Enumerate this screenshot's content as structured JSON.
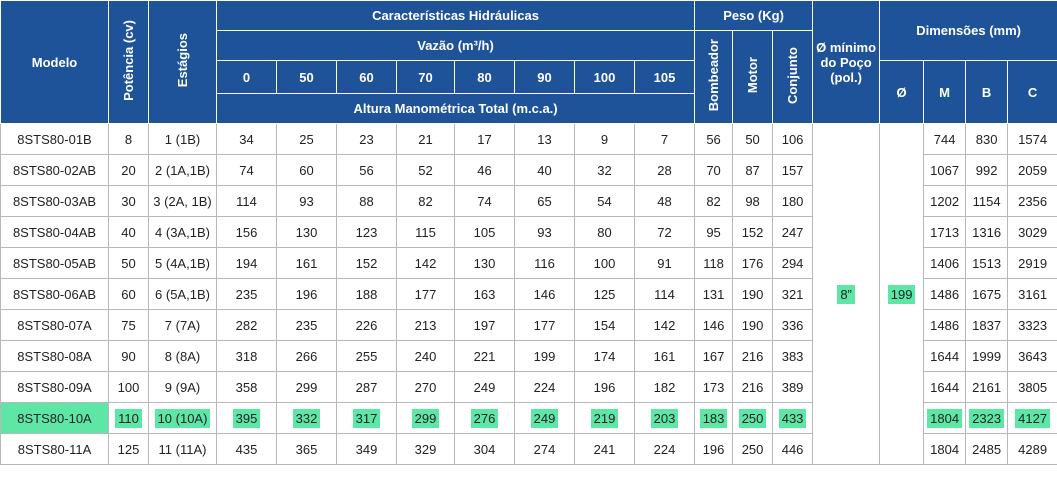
{
  "headers": {
    "modelo": "Modelo",
    "potencia": "Potência (cv)",
    "estagios": "Estágios",
    "caracteristicas": "Características Hidráulicas",
    "vazao": "Vazão (m³/h)",
    "flows": [
      "0",
      "50",
      "60",
      "70",
      "80",
      "90",
      "100",
      "105"
    ],
    "altura": "Altura Manométrica Total (m.c.a.)",
    "peso": "Peso (Kg)",
    "bombeador": "Bombeador",
    "motor": "Motor",
    "conjunto": "Conjunto",
    "poco": "Ø mínimo do Poço (pol.)",
    "dimensoes": "Dimensões (mm)",
    "diam": "Ø",
    "m": "M",
    "b": "B",
    "c": "C"
  },
  "rows": [
    {
      "modelo": "8STS80-01B",
      "potencia": "8",
      "estagios": "1 (1B)",
      "heads": [
        "34",
        "25",
        "23",
        "21",
        "17",
        "13",
        "9",
        "7"
      ],
      "bombeador": "56",
      "motor": "50",
      "conjunto": "106",
      "m": "744",
      "b": "830",
      "c": "1574"
    },
    {
      "modelo": "8STS80-02AB",
      "potencia": "20",
      "estagios": "2 (1A,1B)",
      "heads": [
        "74",
        "60",
        "56",
        "52",
        "46",
        "40",
        "32",
        "28"
      ],
      "bombeador": "70",
      "motor": "87",
      "conjunto": "157",
      "m": "1067",
      "b": "992",
      "c": "2059"
    },
    {
      "modelo": "8STS80-03AB",
      "potencia": "30",
      "estagios": "3 (2A, 1B)",
      "heads": [
        "114",
        "93",
        "88",
        "82",
        "74",
        "65",
        "54",
        "48"
      ],
      "bombeador": "82",
      "motor": "98",
      "conjunto": "180",
      "m": "1202",
      "b": "1154",
      "c": "2356"
    },
    {
      "modelo": "8STS80-04AB",
      "potencia": "40",
      "estagios": "4 (3A,1B)",
      "heads": [
        "156",
        "130",
        "123",
        "115",
        "105",
        "93",
        "80",
        "72"
      ],
      "bombeador": "95",
      "motor": "152",
      "conjunto": "247",
      "m": "1713",
      "b": "1316",
      "c": "3029"
    },
    {
      "modelo": "8STS80-05AB",
      "potencia": "50",
      "estagios": "5 (4A,1B)",
      "heads": [
        "194",
        "161",
        "152",
        "142",
        "130",
        "116",
        "100",
        "91"
      ],
      "bombeador": "118",
      "motor": "176",
      "conjunto": "294",
      "m": "1406",
      "b": "1513",
      "c": "2919"
    },
    {
      "modelo": "8STS80-06AB",
      "potencia": "60",
      "estagios": "6 (5A,1B)",
      "heads": [
        "235",
        "196",
        "188",
        "177",
        "163",
        "146",
        "125",
        "114"
      ],
      "bombeador": "131",
      "motor": "190",
      "conjunto": "321",
      "m": "1486",
      "b": "1675",
      "c": "3161"
    },
    {
      "modelo": "8STS80-07A",
      "potencia": "75",
      "estagios": "7 (7A)",
      "heads": [
        "282",
        "235",
        "226",
        "213",
        "197",
        "177",
        "154",
        "142"
      ],
      "bombeador": "146",
      "motor": "190",
      "conjunto": "336",
      "m": "1486",
      "b": "1837",
      "c": "3323"
    },
    {
      "modelo": "8STS80-08A",
      "potencia": "90",
      "estagios": "8 (8A)",
      "heads": [
        "318",
        "266",
        "255",
        "240",
        "221",
        "199",
        "174",
        "161"
      ],
      "bombeador": "167",
      "motor": "216",
      "conjunto": "383",
      "m": "1644",
      "b": "1999",
      "c": "3643"
    },
    {
      "modelo": "8STS80-09A",
      "potencia": "100",
      "estagios": "9 (9A)",
      "heads": [
        "358",
        "299",
        "287",
        "270",
        "249",
        "224",
        "196",
        "182"
      ],
      "bombeador": "173",
      "motor": "216",
      "conjunto": "389",
      "m": "1644",
      "b": "2161",
      "c": "3805"
    },
    {
      "modelo": "8STS80-10A",
      "potencia": "110",
      "estagios": "10 (10A)",
      "heads": [
        "395",
        "332",
        "317",
        "299",
        "276",
        "249",
        "219",
        "203"
      ],
      "bombeador": "183",
      "motor": "250",
      "conjunto": "433",
      "m": "1804",
      "b": "2323",
      "c": "4127",
      "highlight": true
    },
    {
      "modelo": "8STS80-11A",
      "potencia": "125",
      "estagios": "11 (11A)",
      "heads": [
        "435",
        "365",
        "349",
        "329",
        "304",
        "274",
        "241",
        "224"
      ],
      "bombeador": "196",
      "motor": "250",
      "conjunto": "446",
      "m": "1804",
      "b": "2485",
      "c": "4289"
    }
  ],
  "merged": {
    "poco": "8”",
    "diam": "199"
  },
  "colors": {
    "header_bg": "#1e5399",
    "highlight": "#5ee6a6",
    "merged_bg": "#eeeeee"
  }
}
